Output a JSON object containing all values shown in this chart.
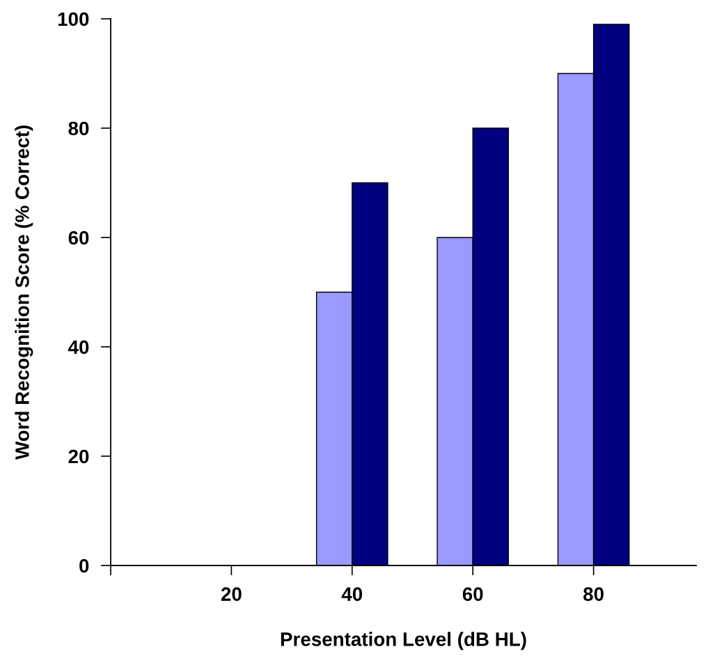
{
  "chart_data": {
    "type": "bar",
    "xlabel": "Presentation Level (dB HL)",
    "ylabel": "Word Recognition Score (% Correct)",
    "x": [
      40,
      60,
      80
    ],
    "series": [
      {
        "color": "#9999ff",
        "values": [
          50,
          60,
          90
        ]
      },
      {
        "color": "#000080",
        "values": [
          70,
          80,
          99
        ]
      }
    ],
    "xlim": [
      0,
      97
    ],
    "xticks": [
      {
        "value": 0,
        "label": null
      },
      20,
      40,
      60,
      80
    ],
    "ylim": [
      0,
      100
    ],
    "yticks": [
      0,
      20,
      40,
      60,
      80,
      100
    ],
    "grid": false
  }
}
